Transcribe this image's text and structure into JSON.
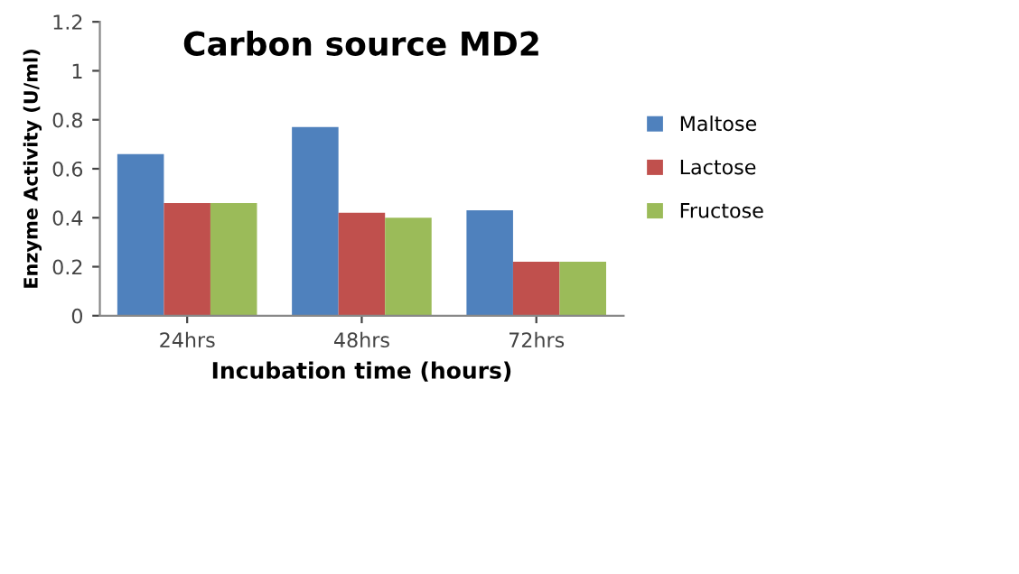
{
  "chart_data": {
    "type": "bar",
    "title": "Carbon source MD2",
    "xlabel": "Incubation time (hours)",
    "ylabel": "Enzyme Activity (U/ml)",
    "categories": [
      "24hrs",
      "48hrs",
      "72hrs"
    ],
    "series": [
      {
        "name": "Maltose",
        "color": "#4f81bd",
        "values": [
          0.66,
          0.77,
          0.43
        ]
      },
      {
        "name": "Lactose",
        "color": "#c0504d",
        "values": [
          0.46,
          0.42,
          0.22
        ]
      },
      {
        "name": "Fructose",
        "color": "#9bbb59",
        "values": [
          0.46,
          0.4,
          0.22
        ]
      }
    ],
    "ylim": [
      0,
      1.2
    ],
    "yticks": [
      0,
      0.2,
      0.4,
      0.6,
      0.8,
      1,
      1.2
    ],
    "grid": false,
    "legend": "right"
  }
}
